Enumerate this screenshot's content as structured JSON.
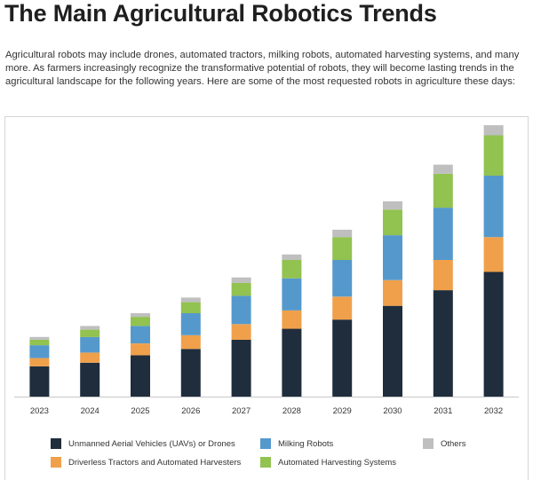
{
  "header": {
    "title": "The Main Agricultural Robotics Trends",
    "intro": "Agricultural robots may include drones, automated tractors, milking robots, automated harvesting systems, and many more. As farmers increasingly recognize the transformative potential of robots, they will become lasting trends in the agricultural landscape for the following years. Here are some of the most requested robots in agriculture these days:"
  },
  "chart_data": {
    "type": "bar",
    "stacked": true,
    "title": "",
    "xlabel": "",
    "ylabel": "",
    "ylim": [
      0,
      300
    ],
    "grid": false,
    "legend_position": "bottom",
    "categories": [
      "2023",
      "2024",
      "2025",
      "2026",
      "2027",
      "2028",
      "2029",
      "2030",
      "2031",
      "2032"
    ],
    "series": [
      {
        "name": "Unmanned Aerial Vehicles (UAVs) or Drones",
        "color": "#1f2d3d",
        "values": [
          33,
          37,
          45,
          52,
          62,
          74,
          84,
          99,
          116,
          136
        ]
      },
      {
        "name": "Driverless Tractors and Automated Harvesters",
        "color": "#f0a04b",
        "values": [
          9,
          11,
          13,
          15,
          17,
          20,
          25,
          28,
          33,
          38
        ]
      },
      {
        "name": "Milking Robots",
        "color": "#5599cc",
        "values": [
          14,
          17,
          19,
          24,
          31,
          35,
          40,
          49,
          57,
          67
        ]
      },
      {
        "name": "Automated Harvesting Systems",
        "color": "#92c24f",
        "values": [
          6,
          8,
          10,
          12,
          14,
          20,
          25,
          28,
          37,
          44
        ]
      },
      {
        "name": "Others",
        "color": "#bfbfbf",
        "values": [
          3,
          4,
          4,
          5,
          6,
          6,
          8,
          9,
          10,
          11
        ]
      }
    ]
  }
}
